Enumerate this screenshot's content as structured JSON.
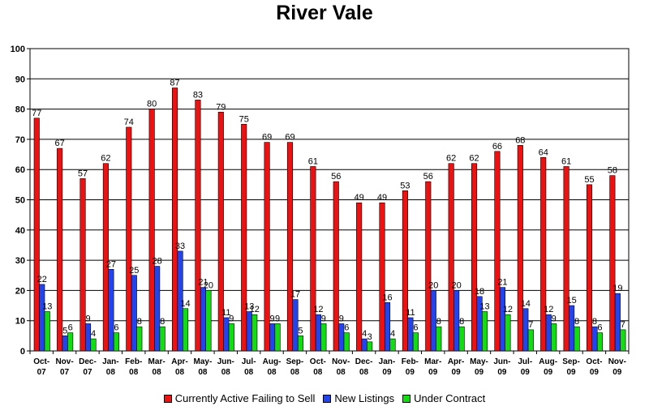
{
  "chart_data": {
    "type": "bar",
    "title": "River Vale",
    "xlabel": "",
    "ylabel": "",
    "ylim": [
      0,
      100
    ],
    "yticks": [
      "0",
      "10",
      "20",
      "30",
      "40",
      "50",
      "60",
      "70",
      "80",
      "90",
      "100"
    ],
    "grid": true,
    "legend_position": "bottom",
    "categories": [
      [
        "Oct-",
        "07"
      ],
      [
        "Nov-",
        "07"
      ],
      [
        "Dec-",
        "07"
      ],
      [
        "Jan-",
        "08"
      ],
      [
        "Feb-",
        "08"
      ],
      [
        "Mar-",
        "08"
      ],
      [
        "Apr-",
        "08"
      ],
      [
        "May-",
        "08"
      ],
      [
        "Jun-",
        "08"
      ],
      [
        "Jul-",
        "08"
      ],
      [
        "Aug-",
        "08"
      ],
      [
        "Sep-",
        "08"
      ],
      [
        "Oct-",
        "08"
      ],
      [
        "Nov-",
        "08"
      ],
      [
        "Dec-",
        "08"
      ],
      [
        "Jan-",
        "09"
      ],
      [
        "Feb-",
        "09"
      ],
      [
        "Mar-",
        "09"
      ],
      [
        "Apr-",
        "09"
      ],
      [
        "May-",
        "09"
      ],
      [
        "Jun-",
        "09"
      ],
      [
        "Jul-",
        "09"
      ],
      [
        "Aug-",
        "09"
      ],
      [
        "Sep-",
        "09"
      ],
      [
        "Oct-",
        "09"
      ],
      [
        "Nov-",
        "09"
      ]
    ],
    "series": [
      {
        "name": "Currently Active Failing to Sell",
        "color": "#ee1111",
        "values": [
          77,
          67,
          57,
          62,
          74,
          80,
          87,
          83,
          79,
          75,
          69,
          69,
          61,
          56,
          49,
          49,
          53,
          56,
          62,
          62,
          66,
          68,
          64,
          61,
          55,
          58
        ]
      },
      {
        "name": "New Listings",
        "color": "#2244ee",
        "values": [
          22,
          5,
          9,
          27,
          25,
          28,
          33,
          21,
          11,
          13,
          9,
          17,
          12,
          9,
          4,
          16,
          11,
          20,
          20,
          18,
          21,
          14,
          12,
          15,
          8,
          19
        ]
      },
      {
        "name": "Under Contract",
        "color": "#11dd11",
        "values": [
          13,
          6,
          4,
          6,
          8,
          8,
          14,
          20,
          9,
          12,
          9,
          5,
          9,
          6,
          3,
          4,
          6,
          8,
          8,
          13,
          12,
          7,
          9,
          8,
          6,
          7
        ]
      }
    ]
  }
}
